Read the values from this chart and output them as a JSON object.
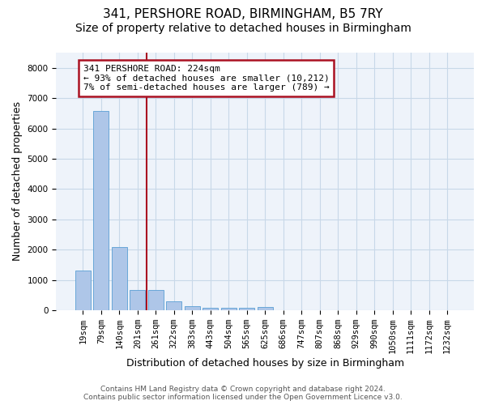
{
  "title_line1": "341, PERSHORE ROAD, BIRMINGHAM, B5 7RY",
  "title_line2": "Size of property relative to detached houses in Birmingham",
  "xlabel": "Distribution of detached houses by size in Birmingham",
  "ylabel": "Number of detached properties",
  "categories": [
    "19sqm",
    "79sqm",
    "140sqm",
    "201sqm",
    "261sqm",
    "322sqm",
    "383sqm",
    "443sqm",
    "504sqm",
    "565sqm",
    "625sqm",
    "686sqm",
    "747sqm",
    "807sqm",
    "868sqm",
    "929sqm",
    "990sqm",
    "1050sqm",
    "1111sqm",
    "1172sqm",
    "1232sqm"
  ],
  "values": [
    1310,
    6580,
    2080,
    670,
    660,
    290,
    130,
    80,
    90,
    80,
    110,
    0,
    0,
    0,
    0,
    0,
    0,
    0,
    0,
    0,
    0
  ],
  "bar_color": "#aec6e8",
  "bar_edge_color": "#5a9fd4",
  "vline_color": "#aa1122",
  "annotation_line1": "341 PERSHORE ROAD: 224sqm",
  "annotation_line2": "← 93% of detached houses are smaller (10,212)",
  "annotation_line3": "7% of semi-detached houses are larger (789) →",
  "annotation_box_color": "#aa1122",
  "ylim": [
    0,
    8500
  ],
  "yticks": [
    0,
    1000,
    2000,
    3000,
    4000,
    5000,
    6000,
    7000,
    8000
  ],
  "grid_color": "#c8d8e8",
  "background_color": "#eef3fa",
  "footer_text": "Contains HM Land Registry data © Crown copyright and database right 2024.\nContains public sector information licensed under the Open Government Licence v3.0.",
  "title_fontsize": 11,
  "subtitle_fontsize": 10,
  "tick_fontsize": 7.5,
  "ylabel_fontsize": 9,
  "xlabel_fontsize": 9,
  "annotation_fontsize": 8,
  "footer_fontsize": 6.5
}
